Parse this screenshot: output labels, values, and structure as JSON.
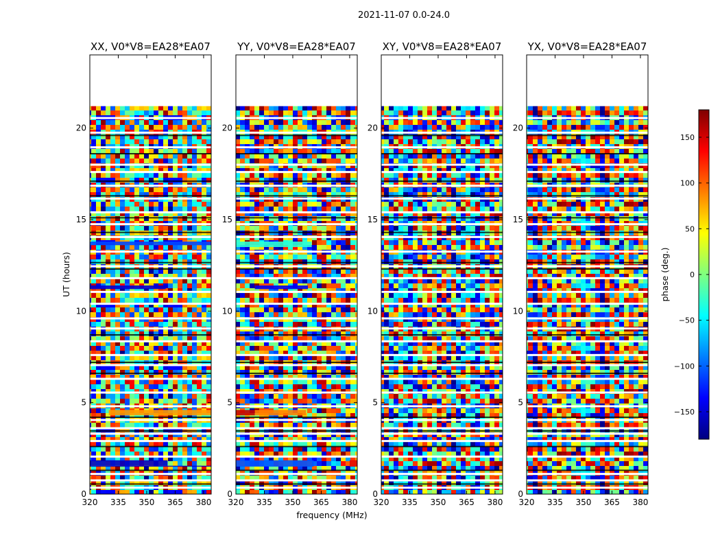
{
  "chart_data": {
    "type": "heatmap",
    "title": "2021-11-07 0.0-24.0",
    "xlabel": "frequency (MHz)",
    "ylabel": "UT (hours)",
    "xlim": [
      320,
      384
    ],
    "ylim": [
      0,
      24
    ],
    "x_ticks": [
      "320",
      "335",
      "350",
      "365",
      "380"
    ],
    "y_ticks": [
      "0",
      "5",
      "10",
      "15",
      "20"
    ],
    "data_end_hour": 21.2,
    "panels": [
      {
        "title": "XX, V0*V8=EA28*EA07",
        "features": [
          {
            "name": "blue band",
            "y0": 1.5,
            "y1": 1.55,
            "x0": 320,
            "x1": 384,
            "value": -155
          },
          {
            "name": "blue band",
            "y0": 1.55,
            "y1": 1.85,
            "x0": 320,
            "x1": 361,
            "value": -155
          },
          {
            "name": "orange band",
            "y0": 4.3,
            "y1": 4.6,
            "x0": 330,
            "x1": 384,
            "value": 80
          },
          {
            "name": "blue band",
            "y0": 11.2,
            "y1": 11.4,
            "x0": 320,
            "x1": 360,
            "value": -150
          },
          {
            "name": "blue band",
            "y0": 13.6,
            "y1": 13.8,
            "x0": 320,
            "x1": 384,
            "value": -110
          }
        ]
      },
      {
        "title": "YY, V0*V8=EA28*EA07",
        "features": [
          {
            "name": "cyan band",
            "y0": 1.5,
            "y1": 1.85,
            "x0": 320,
            "x1": 361,
            "value": -105
          },
          {
            "name": "red band",
            "y0": 1.5,
            "y1": 1.85,
            "x0": 380,
            "x1": 384,
            "value": 145
          },
          {
            "name": "red band",
            "y0": 4.3,
            "y1": 4.6,
            "x0": 320,
            "x1": 330,
            "value": 155
          },
          {
            "name": "orange band",
            "y0": 4.3,
            "y1": 4.6,
            "x0": 330,
            "x1": 357,
            "value": 90
          },
          {
            "name": "blue band",
            "y0": 11.2,
            "y1": 11.4,
            "x0": 330,
            "x1": 358,
            "value": -140
          },
          {
            "name": "green band",
            "y0": 13.5,
            "y1": 13.8,
            "x0": 320,
            "x1": 360,
            "value": -30
          }
        ]
      },
      {
        "title": "XY, V0*V8=EA28*EA07",
        "features": []
      },
      {
        "title": "YX, V0*V8=EA28*EA07",
        "features": []
      }
    ],
    "flag_gaps_hours": [
      0.35,
      0.75,
      1.1,
      2.05,
      2.9,
      3.3,
      3.6,
      4.05,
      4.8,
      5.55,
      6.3,
      7.05,
      7.6,
      8.35,
      9.05,
      9.6,
      10.4,
      11.05,
      11.8,
      12.45,
      13.25,
      14.05,
      14.75,
      15.4,
      16.15,
      16.85,
      17.6,
      18.0,
      18.95,
      19.75,
      20.55
    ],
    "flag_dark_hours": [
      0.55,
      1.3,
      2.6,
      3.45,
      4.2,
      6.6,
      7.2,
      8.7,
      12.3,
      12.65,
      14.3,
      15.1,
      16.3,
      17.1,
      18.6,
      19.6
    ],
    "colorbar": {
      "label": "phase (deg.)",
      "range": [
        -180,
        180
      ],
      "ticks": [
        "150",
        "100",
        "50",
        "0",
        "−50",
        "−100",
        "−150"
      ],
      "tick_values": [
        150,
        100,
        50,
        0,
        -50,
        -100,
        -150
      ],
      "colormap": "jet"
    }
  }
}
